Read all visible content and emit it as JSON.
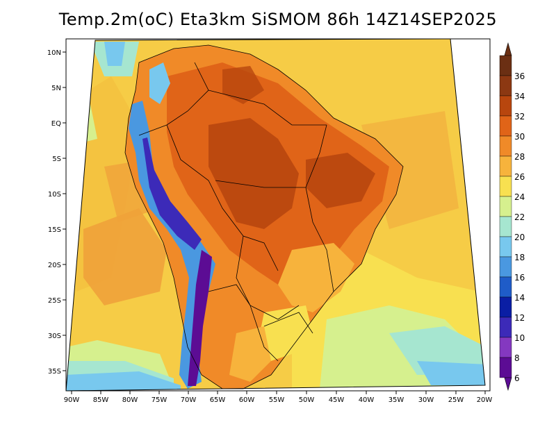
{
  "title": "Temp.2m(oC) Eta3km SiSMOM 86h 14Z14SEP2025",
  "map": {
    "lat_labels": [
      "10N",
      "5N",
      "EQ",
      "5S",
      "10S",
      "15S",
      "20S",
      "25S",
      "30S",
      "35S"
    ],
    "lon_labels": [
      "90W",
      "85W",
      "80W",
      "75W",
      "70W",
      "65W",
      "60W",
      "55W",
      "50W",
      "45W",
      "40W",
      "35W",
      "30W",
      "25W",
      "20W"
    ]
  },
  "colorbar": {
    "labels": [
      "36",
      "34",
      "32",
      "30",
      "28",
      "26",
      "24",
      "22",
      "20",
      "18",
      "16",
      "14",
      "12",
      "10",
      "8",
      "6"
    ],
    "colors": [
      "#6b2f13",
      "#8c3812",
      "#b8460e",
      "#e06418",
      "#f08a28",
      "#f7b33c",
      "#f8e050",
      "#d6f08e",
      "#a6e6d0",
      "#78c8ee",
      "#4a98e0",
      "#1f5cc8",
      "#0a1ea4",
      "#3c2ab8",
      "#8438c0",
      "#5c0c94"
    ]
  }
}
